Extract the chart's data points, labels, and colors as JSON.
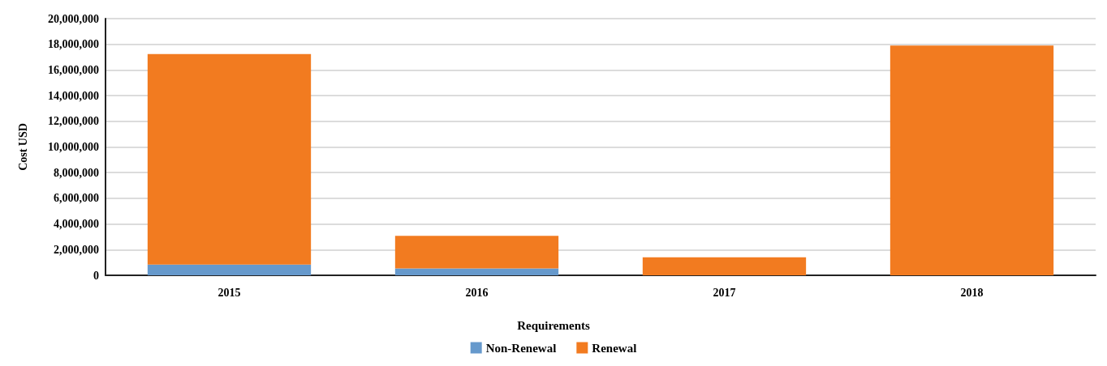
{
  "chart_data": {
    "type": "bar",
    "stacked": true,
    "ylabel": "Cost USD",
    "legend_title": "Requirements",
    "legend": "bottom",
    "grid": "y",
    "categories": [
      "2015",
      "2016",
      "2017",
      "2018"
    ],
    "series": [
      {
        "name": "Non-Renewal",
        "color": "#6699cc",
        "values": [
          840000,
          540000,
          0,
          0
        ]
      },
      {
        "name": "Renewal",
        "color": "#f27b20",
        "values": [
          16400000,
          2530000,
          1400000,
          17900000
        ]
      }
    ],
    "ylim": [
      0,
      20000000
    ],
    "yticks": [
      0,
      {
        "value": 2000000,
        "label": "2,000,000"
      },
      {
        "value": 4000000,
        "label": "4,000,000"
      },
      {
        "value": 6000000,
        "label": "6,000,000"
      },
      {
        "value": 8000000,
        "label": "8,000,000"
      },
      {
        "value": 10000000,
        "label": "10,000,000"
      },
      {
        "value": 12000000,
        "label": "12,000,000"
      },
      {
        "value": 14000000,
        "label": "14,000,000"
      },
      {
        "value": 16000000,
        "label": "16,000,000"
      },
      {
        "value": 18000000,
        "label": "18,000,000"
      },
      {
        "value": 20000000,
        "label": "20,000,000"
      }
    ]
  }
}
